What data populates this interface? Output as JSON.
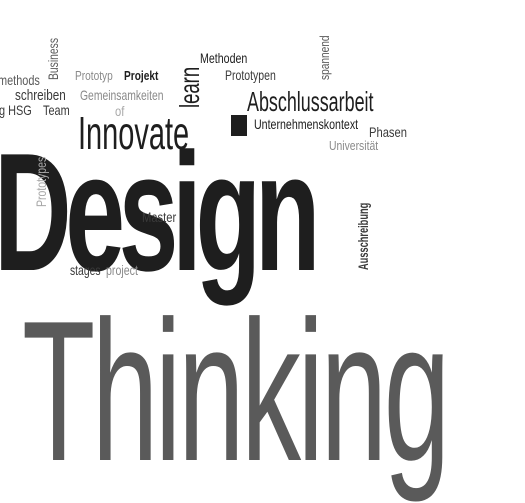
{
  "word_cloud": {
    "words": [
      {
        "text": "Design"
      },
      {
        "text": "Thinking"
      },
      {
        "text": "Innovate"
      },
      {
        "text": "Abschlussarbeit"
      },
      {
        "text": "learn"
      },
      {
        "text": "Methoden"
      },
      {
        "text": "Prototypen"
      },
      {
        "text": "spannend"
      },
      {
        "text": "Business"
      },
      {
        "text": "methods"
      },
      {
        "text": "Prototyp"
      },
      {
        "text": "Projekt"
      },
      {
        "text": "schreiben"
      },
      {
        "text": "Gemeinsamkeiten"
      },
      {
        "text": "g HSG"
      },
      {
        "text": "Team"
      },
      {
        "text": "of"
      },
      {
        "text": "Unternehmenskontext"
      },
      {
        "text": "Phasen"
      },
      {
        "text": "Universität"
      },
      {
        "text": "Prototypes"
      },
      {
        "text": "Master"
      },
      {
        "text": "Ausschreibung"
      },
      {
        "text": "stages"
      },
      {
        "text": "project"
      }
    ]
  }
}
